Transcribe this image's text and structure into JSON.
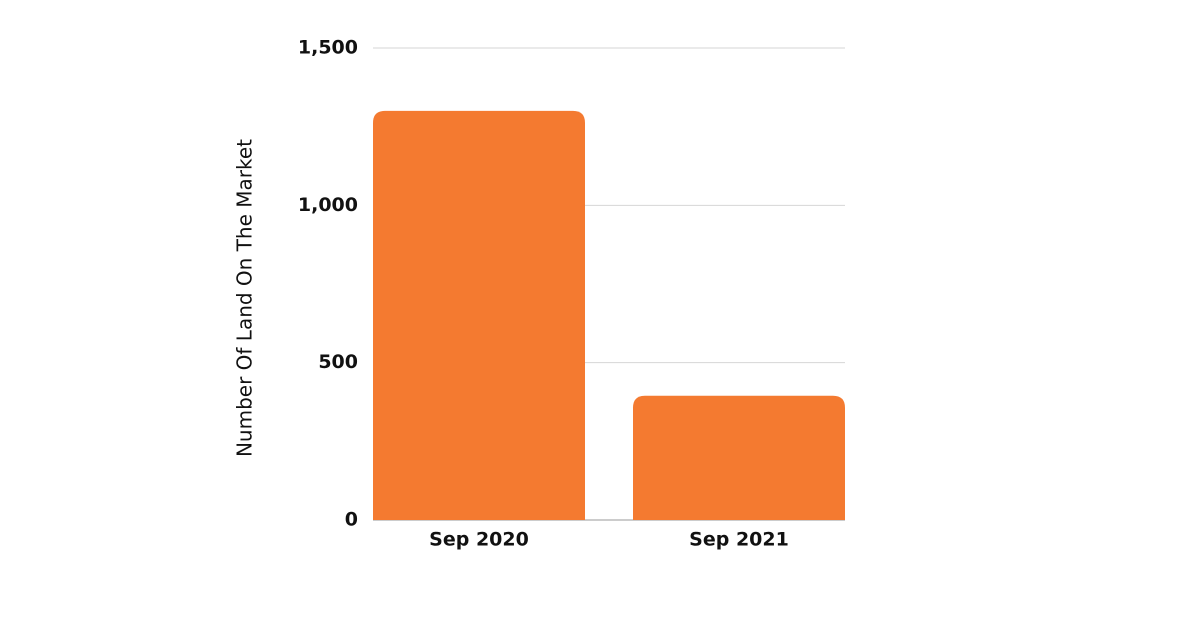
{
  "chart_data": {
    "type": "bar",
    "y_axis_label": "Number Of Land On The Market",
    "categories": [
      "Sep 2020",
      "Sep 2021"
    ],
    "values": [
      1300,
      395
    ],
    "color": "#f47a30",
    "ylim": [
      0,
      1500
    ],
    "yticks": [
      0,
      500,
      {
        "value": 1000,
        "label": "1,000"
      },
      {
        "value": 1500,
        "label": "1,500"
      }
    ],
    "grid": true
  }
}
